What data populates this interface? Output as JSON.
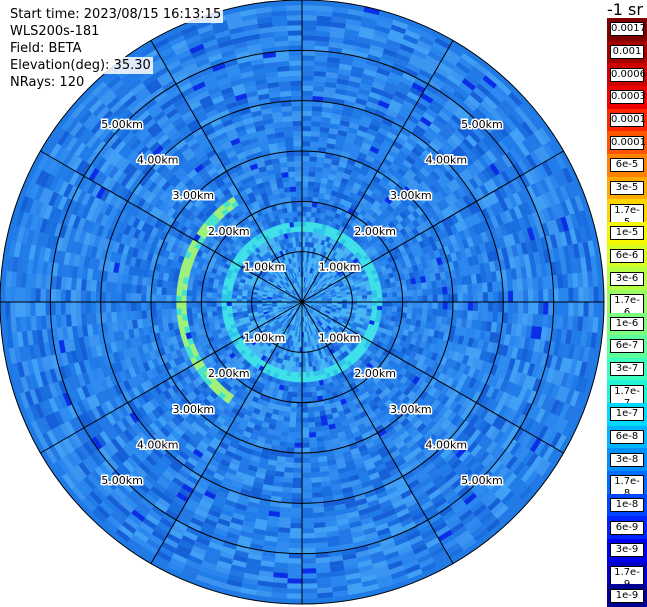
{
  "header": {
    "start_time": "Start time: 2023/08/15 16:13:15",
    "device": "WLS200s-181",
    "field": "Field: BETA",
    "elevation": "Elevation(deg): 35.30",
    "nrays": "NRays: 120"
  },
  "colorbar": {
    "unit": "-1 sr",
    "labels": [
      "0.0017",
      "0.001",
      "0.0006",
      "0.0003",
      "0.00017",
      "0.0001",
      "6e-5",
      "3e-5",
      "1.7e-5",
      "1e-5",
      "6e-6",
      "3e-6",
      "1.7e-6",
      "1e-6",
      "6e-7",
      "3e-7",
      "1.7e-7",
      "1e-7",
      "6e-8",
      "3e-8",
      "1.7e-8",
      "1e-8",
      "6e-9",
      "3e-9",
      "1.7e-9",
      "1e-9"
    ],
    "colors": [
      "#7f0000",
      "#a50000",
      "#cc0000",
      "#f00000",
      "#ff2600",
      "#ff5400",
      "#ff8200",
      "#ffaa00",
      "#ffd400",
      "#f4f802",
      "#d3ff23",
      "#b4ff43",
      "#97ff60",
      "#7bff7c",
      "#5dff9a",
      "#3cffbb",
      "#1ff4d7",
      "#00d8ff",
      "#00b4ff",
      "#0090ff",
      "#006cff",
      "#0048ff",
      "#0024ff",
      "#0000f1",
      "#0000c4",
      "#000093"
    ]
  },
  "chart_data": {
    "type": "heatmap",
    "projection": "polar (PPI scan)",
    "field": "BETA",
    "nrays": 120,
    "range_rings_km": [
      1.0,
      2.0,
      3.0,
      4.0,
      5.0
    ],
    "ring_labels": [
      "1.00km",
      "2.00km",
      "3.00km",
      "4.00km",
      "5.00km"
    ],
    "max_range_km": 6.0,
    "spokes_deg": [
      0,
      30,
      60,
      90,
      120,
      150,
      180,
      210,
      240,
      270,
      300,
      301
    ],
    "background_level": "1e-8",
    "features": [
      {
        "description_level": "ring",
        "range_km": 1.5,
        "value": "1e-7 to 1.7e-7"
      },
      {
        "description_level": "arc",
        "range_km": 2.4,
        "value": "1.7e-7 to 1.7e-6"
      }
    ],
    "grid": true
  }
}
